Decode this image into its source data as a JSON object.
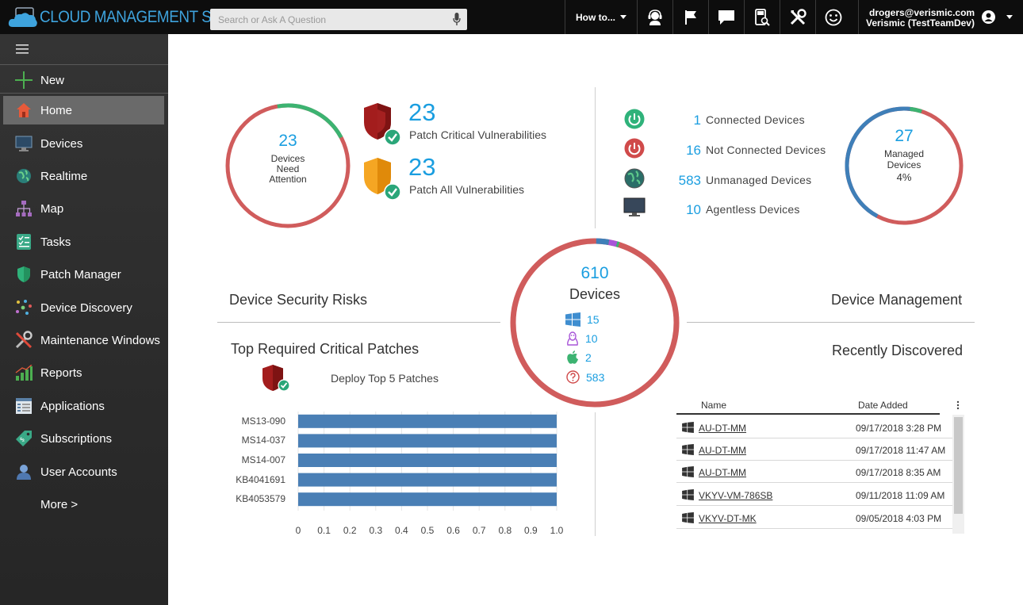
{
  "app": {
    "title": "CLOUD MANAGEMENT SUITE"
  },
  "search": {
    "placeholder": "Search or Ask A Question"
  },
  "topbar": {
    "howto_label": "How to...",
    "icons": [
      "support-agent-icon",
      "flag-icon",
      "chat-icon",
      "device-search-icon",
      "tools-icon",
      "smiley-icon"
    ],
    "user_email": "drogers@verismic.com",
    "user_org": "Verismic (TestTeamDev)"
  },
  "sidebar": {
    "items": [
      {
        "label": "New",
        "icon": "plus-icon"
      },
      {
        "label": "Home",
        "icon": "home-icon",
        "active": true
      },
      {
        "label": "Devices",
        "icon": "monitor-icon"
      },
      {
        "label": "Realtime",
        "icon": "globe-icon"
      },
      {
        "label": "Map",
        "icon": "network-map-icon"
      },
      {
        "label": "Tasks",
        "icon": "tasks-icon"
      },
      {
        "label": "Patch Manager",
        "icon": "shield-icon"
      },
      {
        "label": "Device Discovery",
        "icon": "discovery-icon"
      },
      {
        "label": "Maintenance Windows",
        "icon": "tools-icon"
      },
      {
        "label": "Reports",
        "icon": "bar-chart-icon"
      },
      {
        "label": "Applications",
        "icon": "applications-icon"
      },
      {
        "label": "Subscriptions",
        "icon": "tag-icon"
      },
      {
        "label": "User Accounts",
        "icon": "user-icon"
      },
      {
        "label": "More >",
        "icon": ""
      }
    ]
  },
  "security": {
    "ring_value": "23",
    "ring_label_1": "Devices",
    "ring_label_2": "Need",
    "ring_label_3": "Attention",
    "ring_attention_fraction": 0.2,
    "critical_count": "23",
    "critical_label": "Patch Critical Vulnerabilities",
    "all_count": "23",
    "all_label": "Patch All Vulnerabilities",
    "section_title": "Device Security Risks"
  },
  "center": {
    "total": "610",
    "label": "Devices",
    "os": [
      {
        "icon": "windows-icon",
        "value": "15"
      },
      {
        "icon": "linux-icon",
        "value": "10"
      },
      {
        "icon": "apple-icon",
        "value": "2"
      },
      {
        "icon": "unknown-os-icon",
        "value": "583"
      }
    ]
  },
  "management": {
    "stats": [
      {
        "icon": "power-on-icon",
        "value": "1",
        "label": "Connected Devices"
      },
      {
        "icon": "power-off-icon",
        "value": "16",
        "label": "Not Connected Devices"
      },
      {
        "icon": "globe-icon",
        "value": "583",
        "label": "Unmanaged Devices"
      },
      {
        "icon": "monitor-icon",
        "value": "10",
        "label": "Agentless Devices"
      }
    ],
    "ring_value": "27",
    "ring_label_1": "Managed",
    "ring_label_2": "Devices",
    "ring_percent": "4%",
    "section_title": "Device Management"
  },
  "patches": {
    "section_title": "Top Required Critical Patches",
    "deploy_label": "Deploy Top 5 Patches"
  },
  "chart_data": {
    "type": "bar",
    "orientation": "horizontal",
    "categories": [
      "MS13-090",
      "MS14-037",
      "MS14-007",
      "KB4041691",
      "KB4053579"
    ],
    "values": [
      1.0,
      1.0,
      1.0,
      1.0,
      1.0
    ],
    "xlim": [
      0,
      1.0
    ],
    "ticks": [
      "0",
      "0.1",
      "0.2",
      "0.3",
      "0.4",
      "0.5",
      "0.6",
      "0.7",
      "0.8",
      "0.9",
      "1.0"
    ],
    "bar_color": "#4a7fb5",
    "grid": true
  },
  "recent": {
    "section_title": "Recently Discovered",
    "col_name": "Name",
    "col_date": "Date Added",
    "rows": [
      {
        "name": "AU-DT-MM",
        "date": "09/17/2018 3:28 PM"
      },
      {
        "name": "AU-DT-MM",
        "date": "09/17/2018 11:47 AM"
      },
      {
        "name": "AU-DT-MM",
        "date": "09/17/2018 8:35 AM"
      },
      {
        "name": "VKYV-VM-786SB",
        "date": "09/11/2018 11:09 AM"
      },
      {
        "name": "VKYV-DT-MK",
        "date": "09/05/2018 4:03 PM"
      }
    ]
  },
  "colors": {
    "accent": "#1a9ee0",
    "ring_red": "#d05c5c",
    "ring_green": "#3cb371",
    "ring_blue": "#3f7fb8",
    "ring_purple": "#a855d8"
  }
}
